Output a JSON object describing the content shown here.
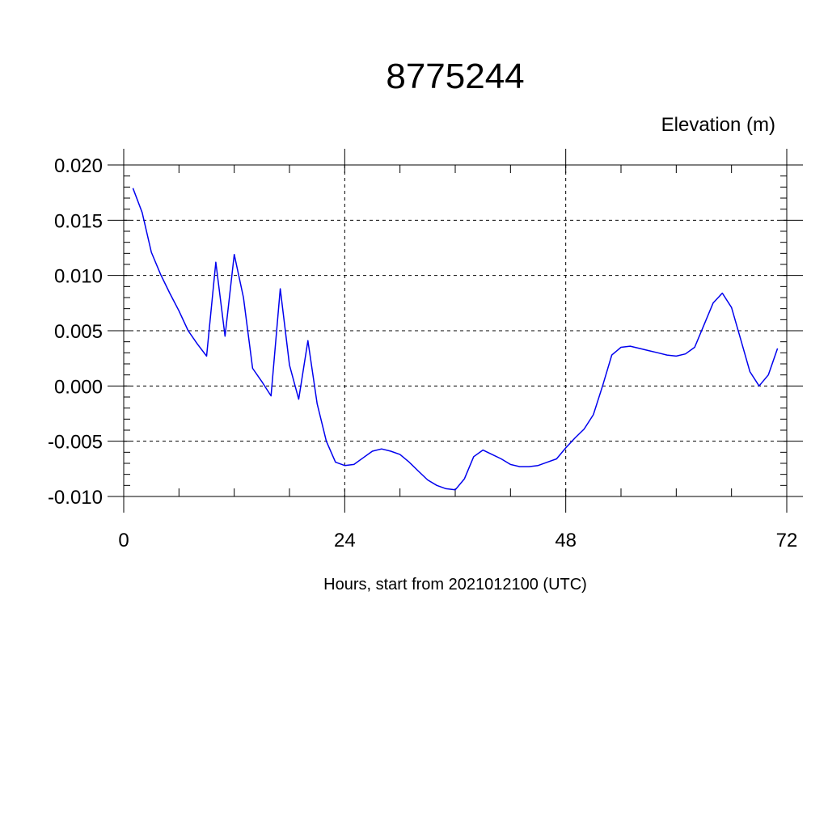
{
  "chart_data": {
    "type": "line",
    "title": "8775244",
    "ylabel": "Elevation (m)",
    "xlabel": "Hours, start from 2021012100 (UTC)",
    "xlim": [
      0,
      72
    ],
    "ylim": [
      -0.01,
      0.02
    ],
    "x_ticks": [
      0,
      24,
      48,
      72
    ],
    "x_tick_labels": [
      "0",
      "24",
      "48",
      "72"
    ],
    "y_ticks": [
      -0.01,
      -0.005,
      0.0,
      0.005,
      0.01,
      0.015,
      0.02
    ],
    "y_tick_labels": [
      "-0.010",
      "-0.005",
      "0.000",
      "0.005",
      "0.010",
      "0.015",
      "0.020"
    ],
    "grid": "dashed",
    "line_color": "#0000ee",
    "series": [
      {
        "x": [
          1,
          2,
          3,
          4,
          5,
          6,
          7,
          8,
          9,
          10,
          11,
          12,
          13,
          14,
          15,
          16,
          17,
          18,
          19,
          20,
          21,
          22,
          23,
          24,
          25,
          26,
          27,
          28,
          29,
          30,
          31,
          32,
          33,
          34,
          35,
          36,
          37,
          38,
          39,
          40,
          41,
          42,
          43,
          44,
          45,
          46,
          47,
          48,
          49,
          50,
          51,
          52,
          53,
          54,
          55,
          56,
          57,
          58,
          59,
          60,
          61,
          62,
          63,
          64,
          65,
          66,
          67,
          68,
          69,
          70,
          71
        ],
        "values": [
          0.0179,
          0.0157,
          0.0121,
          0.0101,
          0.0084,
          0.0068,
          0.005,
          0.0038,
          0.0027,
          0.0112,
          0.0045,
          0.0119,
          0.008,
          0.0016,
          0.0004,
          -0.0009,
          0.0088,
          0.0019,
          -0.0012,
          0.0041,
          -0.0016,
          -0.005,
          -0.0069,
          -0.0072,
          -0.0071,
          -0.0065,
          -0.0059,
          -0.0057,
          -0.0059,
          -0.0062,
          -0.0069,
          -0.0077,
          -0.0085,
          -0.009,
          -0.0093,
          -0.0094,
          -0.0084,
          -0.0064,
          -0.0058,
          -0.0062,
          -0.0066,
          -0.0071,
          -0.0073,
          -0.0073,
          -0.0072,
          -0.0069,
          -0.0066,
          -0.0056,
          -0.0047,
          -0.0039,
          -0.0026,
          0,
          0.0028,
          0.0035,
          0.0036,
          0.0034,
          0.0032,
          0.003,
          0.0028,
          0.0027,
          0.0029,
          0.0035,
          0.0055,
          0.0075,
          0.0084,
          0.0071,
          0.0042,
          0.0013,
          0,
          0.001,
          0.0034
        ]
      }
    ]
  }
}
